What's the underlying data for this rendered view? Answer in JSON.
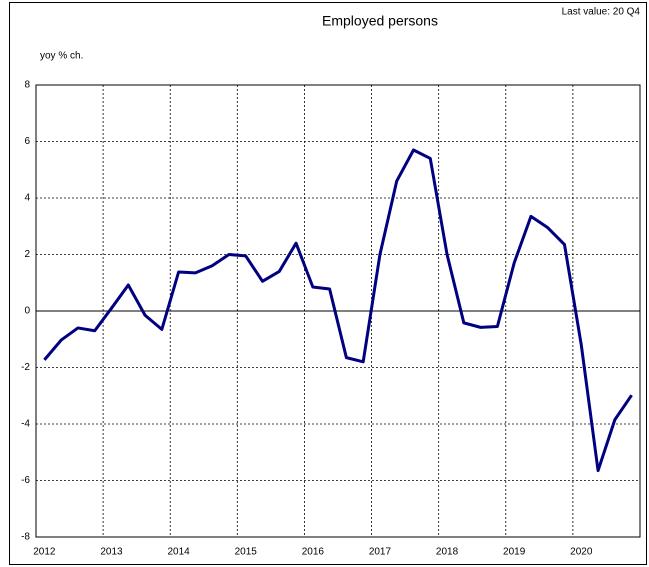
{
  "chart_data": {
    "type": "line",
    "title": "Employed persons",
    "annotation": "Last value: 20 Q4",
    "y_label": "yoy % ch.",
    "categories": [
      "2012",
      null,
      null,
      null,
      "2013",
      null,
      null,
      null,
      "2014",
      null,
      null,
      null,
      "2015",
      null,
      null,
      null,
      "2016",
      null,
      null,
      null,
      "2017",
      null,
      null,
      null,
      "2018",
      null,
      null,
      null,
      "2019",
      null,
      null,
      null,
      "2020",
      null,
      null,
      null
    ],
    "series": [
      {
        "name": "Employed persons",
        "color": "#000080",
        "values": [
          -1.73,
          -1.03,
          -0.6,
          -0.7,
          0.1,
          0.92,
          -0.15,
          -0.65,
          1.38,
          1.35,
          1.6,
          2.0,
          1.95,
          1.05,
          1.4,
          2.4,
          0.85,
          0.78,
          -1.65,
          -1.8,
          2.0,
          4.6,
          5.7,
          5.4,
          2.0,
          -0.42,
          -0.58,
          -0.55,
          1.7,
          3.35,
          2.95,
          2.35,
          -1.2,
          -5.65,
          -3.85,
          -2.98
        ]
      }
    ],
    "ylim": [
      -8,
      8
    ],
    "yticks": [
      -8,
      -6,
      -4,
      -2,
      0,
      2,
      4,
      6,
      8
    ],
    "grid": true
  }
}
